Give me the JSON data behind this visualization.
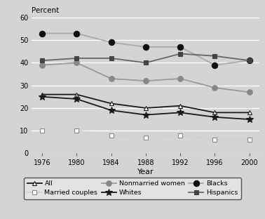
{
  "years": [
    1976,
    1980,
    1984,
    1988,
    1992,
    1996,
    2000
  ],
  "series_order": [
    "All",
    "Married couples",
    "Nonmarried women",
    "Whites",
    "Blacks",
    "Hispanics"
  ],
  "series": {
    "All": [
      26,
      26,
      22,
      20,
      21,
      18,
      18
    ],
    "Married couples": [
      10,
      10,
      8,
      7,
      8,
      6,
      6
    ],
    "Nonmarried women": [
      39,
      40,
      33,
      32,
      33,
      29,
      27
    ],
    "Whites": [
      25,
      24,
      19,
      17,
      18,
      16,
      15
    ],
    "Blacks": [
      53,
      53,
      49,
      47,
      47,
      39,
      41
    ],
    "Hispanics": [
      41,
      42,
      42,
      40,
      44,
      43,
      41
    ]
  },
  "line_styles": {
    "All": {
      "color": "#1a1a1a",
      "marker": "^",
      "markersize": 4.5,
      "linewidth": 1.3,
      "markerfacecolor": "white",
      "markeredgecolor": "#1a1a1a",
      "markeredgewidth": 0.8
    },
    "Married couples": {
      "color": "#d0d0d0",
      "marker": "s",
      "markersize": 4.5,
      "linewidth": 1.3,
      "markerfacecolor": "white",
      "markeredgecolor": "#888888",
      "markeredgewidth": 0.8
    },
    "Nonmarried women": {
      "color": "#999999",
      "marker": "o",
      "markersize": 5.5,
      "linewidth": 1.3,
      "markerfacecolor": "#888888",
      "markeredgecolor": "#888888",
      "markeredgewidth": 0.8
    },
    "Whites": {
      "color": "#1a1a1a",
      "marker": "*",
      "markersize": 7,
      "linewidth": 1.3,
      "markerfacecolor": "#1a1a1a",
      "markeredgecolor": "#1a1a1a",
      "markeredgewidth": 0.8
    },
    "Blacks": {
      "color": "#aaaaaa",
      "marker": "o",
      "markersize": 6,
      "linewidth": 1.3,
      "markerfacecolor": "#111111",
      "markeredgecolor": "#111111",
      "markeredgewidth": 0.8
    },
    "Hispanics": {
      "color": "#666666",
      "marker": "s",
      "markersize": 4.5,
      "linewidth": 1.3,
      "markerfacecolor": "#444444",
      "markeredgecolor": "#444444",
      "markeredgewidth": 0.8
    }
  },
  "ylabel": "Percent",
  "xlabel": "Year",
  "ylim": [
    0,
    60
  ],
  "yticks": [
    0,
    10,
    20,
    30,
    40,
    50,
    60
  ],
  "bg_color": "#d4d4d4",
  "fig_color": "#d4d4d4",
  "legend_ncol": 3,
  "legend_order": [
    "All",
    "Married couples",
    "Nonmarried women",
    "Whites",
    "Blacks",
    "Hispanics"
  ]
}
